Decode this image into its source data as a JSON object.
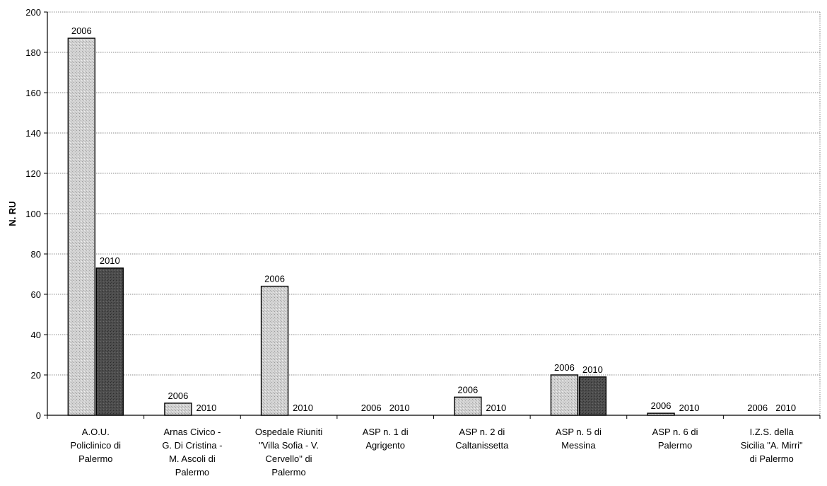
{
  "chart_data": {
    "type": "bar",
    "ylabel": "N. RU",
    "ylim": [
      0,
      200
    ],
    "yticks": [
      0,
      20,
      40,
      60,
      80,
      100,
      120,
      140,
      160,
      180,
      200
    ],
    "grid": true,
    "categories": [
      [
        "A.O.U.",
        "Policlinico di",
        "Palermo"
      ],
      [
        "Arnas Civico -",
        "G. Di Cristina -",
        "M. Ascoli di",
        "Palermo"
      ],
      [
        "Ospedale Riuniti",
        "\"Villa Sofia - V.",
        "Cervello\" di",
        "Palermo"
      ],
      [
        "ASP n. 1 di",
        "Agrigento"
      ],
      [
        "ASP n. 2 di",
        "Caltanissetta"
      ],
      [
        "ASP n. 5 di",
        "Messina"
      ],
      [
        "ASP n. 6 di",
        "Palermo"
      ],
      [
        "I.Z.S. della",
        "Sicilia \"A. Mirri\"",
        "di Palermo"
      ]
    ],
    "series": [
      {
        "name": "2006",
        "color": "#c8c8c8",
        "values": [
          187,
          6,
          64,
          0,
          9,
          20,
          1,
          0
        ]
      },
      {
        "name": "2010",
        "color": "#4a4a4a",
        "values": [
          73,
          0,
          0,
          0,
          0,
          19,
          0,
          0
        ]
      }
    ]
  }
}
